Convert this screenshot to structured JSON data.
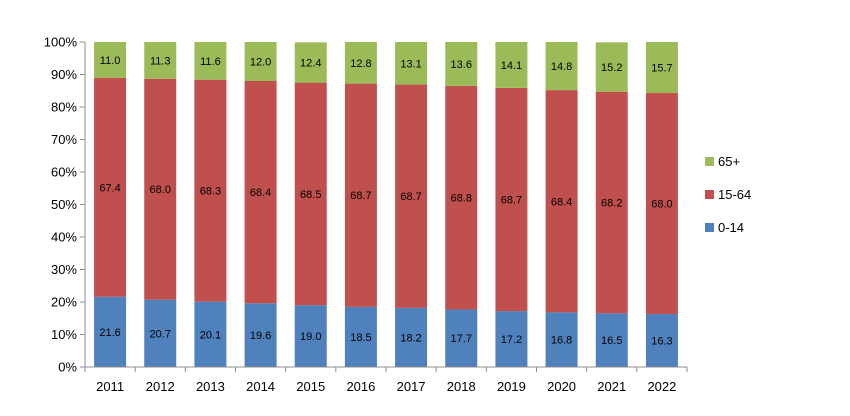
{
  "chart_data": {
    "type": "bar",
    "stacked": true,
    "percent_axis": true,
    "categories": [
      "2011",
      "2012",
      "2013",
      "2014",
      "2015",
      "2016",
      "2017",
      "2018",
      "2019",
      "2020",
      "2021",
      "2022"
    ],
    "series": [
      {
        "name": "0-14",
        "color": "#4F81BD",
        "values": [
          21.6,
          20.7,
          20.1,
          19.6,
          19.0,
          18.5,
          18.2,
          17.7,
          17.2,
          16.8,
          16.5,
          16.3
        ],
        "labels": [
          "21.6",
          "20.7",
          "20.1",
          "19.6",
          "19.0",
          "18.5",
          "18.2",
          "17.7",
          "17.2",
          "16.8",
          "16.5",
          "16.3"
        ]
      },
      {
        "name": "15-64",
        "color": "#C0504D",
        "values": [
          67.4,
          68.0,
          68.3,
          68.4,
          68.5,
          68.7,
          68.7,
          68.8,
          68.7,
          68.4,
          68.2,
          68.0
        ],
        "labels": [
          "67.4",
          "68.0",
          "68.3",
          "68.4",
          "68.5",
          "68.7",
          "68.7",
          "68.8",
          "68.7",
          "68.4",
          "68.2",
          "68.0"
        ]
      },
      {
        "name": "65+",
        "color": "#9BBB59",
        "values": [
          11.0,
          11.3,
          11.6,
          12.0,
          12.4,
          12.8,
          13.1,
          13.6,
          14.1,
          14.8,
          15.2,
          15.7
        ],
        "labels": [
          "11.0",
          "11.3",
          "11.6",
          "12.0",
          "12.4",
          "12.8",
          "13.1",
          "13.6",
          "14.1",
          "14.8",
          "15.2",
          "15.7"
        ]
      }
    ],
    "ylim": [
      0,
      100
    ],
    "yticks": [
      "0%",
      "10%",
      "20%",
      "30%",
      "40%",
      "50%",
      "60%",
      "70%",
      "80%",
      "90%",
      "100%"
    ],
    "grid": false,
    "legend_position": "right",
    "legend_order": [
      "65+",
      "15-64",
      "0-14"
    ],
    "title": "",
    "xlabel": "",
    "ylabel": ""
  }
}
